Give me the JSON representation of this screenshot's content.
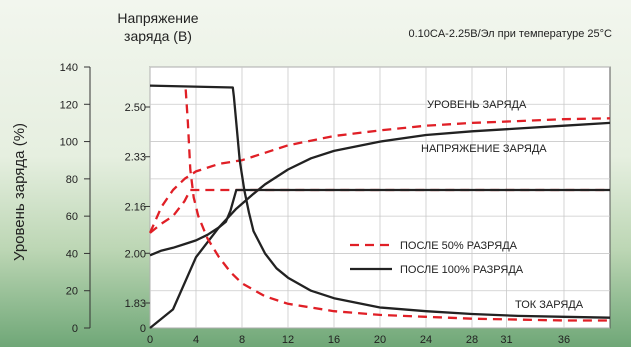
{
  "chart_data": {
    "type": "line",
    "title": "",
    "subtitle": "0.10CA-2.25В/Эл при температуре 25°C",
    "ylabel_left": "Уровень заряда (%)",
    "ylabel_voltage_line1": "Напряжение",
    "ylabel_voltage_line2": "заряда (В)",
    "ylim_left": [
      0,
      140
    ],
    "left_ticks": [
      "0",
      "20",
      "40",
      "60",
      "80",
      "100",
      "120",
      "140"
    ],
    "voltage_ticks": [
      {
        "label": "1.83",
        "value": 1.83
      },
      {
        "label": "2.00",
        "value": 2.0
      },
      {
        "label": "2.16",
        "value": 2.16
      },
      {
        "label": "2.33",
        "value": 2.33
      },
      {
        "label": "2.50",
        "value": 2.5
      }
    ],
    "voltage_origin_label": "0",
    "x_ticks": [
      "0",
      "4",
      "8",
      "12",
      "16",
      "20",
      "24",
      "28",
      "31",
      "36"
    ],
    "xlim": [
      0,
      40
    ],
    "grid": true,
    "annotations": {
      "charge_level": "УРОВЕНЬ ЗАРЯДА",
      "charge_voltage": "НАПРЯЖЕНИЕ ЗАРЯДА",
      "charge_current": "ТОК ЗАРЯДА"
    },
    "legend": [
      {
        "name": "ПОСЛЕ 50% РАЗРЯДА",
        "style": "dashed",
        "color": "#e01f26"
      },
      {
        "name": "ПОСЛЕ 100% РАЗРЯДА",
        "style": "solid",
        "color": "#222222"
      }
    ],
    "series": [
      {
        "id": "level50",
        "legend": "ПОСЛЕ 50% РАЗРЯДА",
        "style": "dashed",
        "x": [
          0,
          1,
          2,
          3,
          4,
          6,
          8,
          10,
          12,
          16,
          20,
          24,
          28,
          32,
          36,
          40
        ],
        "y": [
          51,
          65,
          74,
          80,
          84,
          88,
          90,
          94,
          98,
          103,
          106,
          108.5,
          110,
          111,
          112,
          112.5
        ]
      },
      {
        "id": "level100",
        "legend": "ПОСЛЕ 100% РАЗРЯДА",
        "style": "solid",
        "x": [
          0,
          2,
          4,
          6,
          7.5,
          9,
          10,
          12,
          14,
          16,
          20,
          24,
          28,
          32,
          36,
          40
        ],
        "y": [
          0,
          10,
          38,
          54,
          64,
          72,
          77,
          85,
          91,
          95,
          100,
          103.5,
          105.5,
          107,
          108.5,
          110
        ]
      },
      {
        "id": "volt50",
        "legend": "ПОСЛЕ 50% РАЗРЯДА",
        "style": "dashed",
        "x": [
          0,
          1,
          2,
          3,
          3.5,
          40
        ],
        "y": [
          51,
          56,
          60,
          68,
          74,
          74
        ]
      },
      {
        "id": "volt100",
        "legend": "ПОСЛЕ 100% РАЗРЯДА",
        "style": "solid",
        "x": [
          0,
          1,
          2,
          3,
          4,
          5,
          6,
          6.6,
          7,
          7.5,
          8,
          40
        ],
        "y": [
          39,
          41.5,
          43,
          45,
          47,
          50,
          54,
          57,
          63,
          74,
          74,
          74
        ]
      },
      {
        "id": "curr50",
        "legend": "ПОСЛЕ 50% РАЗРЯДА",
        "style": "dashed",
        "x": [
          3.1,
          3.3,
          3.5,
          3.8,
          4.2,
          5,
          6,
          7,
          8,
          10,
          12,
          16,
          20,
          24,
          28,
          32,
          36,
          40
        ],
        "y": [
          128,
          110,
          85,
          70,
          60,
          48,
          38,
          30,
          24,
          17,
          13,
          9,
          7,
          6,
          5,
          4.5,
          4,
          4
        ]
      },
      {
        "id": "curr100",
        "legend": "ПОСЛЕ 100% РАЗРЯДА",
        "style": "solid",
        "x": [
          0,
          7.2,
          7.3,
          7.5,
          7.8,
          8.2,
          8.6,
          9,
          10,
          11,
          12,
          14,
          16,
          20,
          24,
          28,
          32,
          36,
          40
        ],
        "y": [
          130,
          129,
          124,
          110,
          90,
          74,
          62,
          52,
          40,
          32,
          27,
          20,
          16,
          11,
          9,
          7.5,
          6.5,
          6,
          5.5
        ]
      }
    ]
  }
}
